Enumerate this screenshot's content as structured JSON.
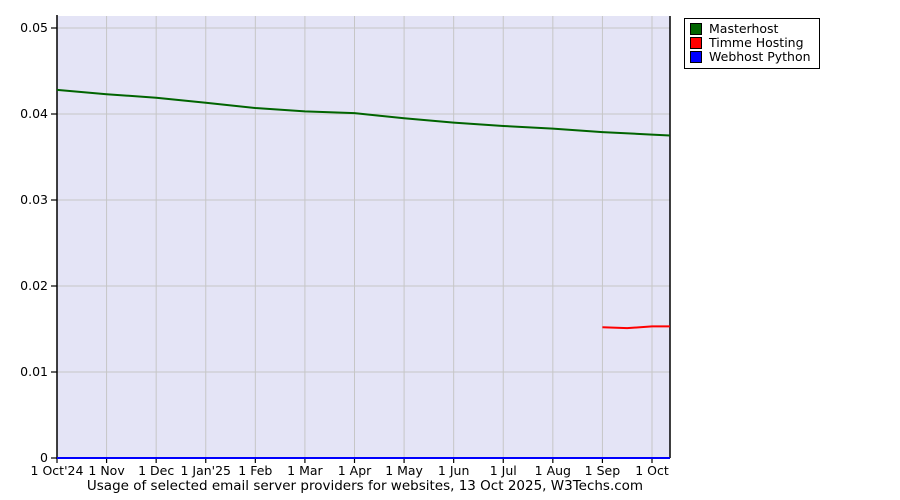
{
  "title": "Usage of selected email server providers for websites, 13 Oct 2025, W3Techs.com",
  "chart_data": {
    "type": "line",
    "title": "Usage of selected email server providers for websites, 13 Oct 2025, W3Techs.com",
    "x_tick_labels": [
      "1 Oct'24",
      "1 Nov",
      "1 Dec",
      "1 Jan'25",
      "1 Feb",
      "1 Mar",
      "1 Apr",
      "1 May",
      "1 Jun",
      "1 Jul",
      "1 Aug",
      "1 Sep",
      "1 Oct"
    ],
    "yticks": [
      0,
      0.01,
      0.02,
      0.03,
      0.04,
      0.05
    ],
    "ytick_labels": [
      "0",
      "0.01",
      "0.02",
      "0.03",
      "0.04",
      "0.05"
    ],
    "ylim": [
      0,
      0.0514
    ],
    "grid": true,
    "legend_position": "top-right",
    "series": [
      {
        "name": "Masterhost",
        "color": "#006400",
        "x": [
          0,
          1,
          2,
          3,
          4,
          5,
          6,
          7,
          8,
          9,
          10,
          11,
          12,
          12.36
        ],
        "values": [
          0.0428,
          0.0423,
          0.0419,
          0.0413,
          0.0407,
          0.0403,
          0.0401,
          0.0395,
          0.039,
          0.0386,
          0.0383,
          0.0379,
          0.0376,
          0.0375
        ]
      },
      {
        "name": "Timme Hosting",
        "color": "#ff0000",
        "x": [
          11,
          11.5,
          12,
          12.36
        ],
        "values": [
          0.0152,
          0.0151,
          0.0153,
          0.0153
        ]
      },
      {
        "name": "Webhost Python",
        "color": "#0000ff",
        "x": [
          0,
          12.36
        ],
        "values": [
          0,
          0
        ]
      }
    ],
    "colors": {
      "plot_bg": "#e4e4f6",
      "grid": "#c6c6c6",
      "axis": "#000000"
    }
  },
  "legend": {
    "items": [
      {
        "label": "Masterhost"
      },
      {
        "label": "Timme Hosting"
      },
      {
        "label": "Webhost Python"
      }
    ]
  }
}
